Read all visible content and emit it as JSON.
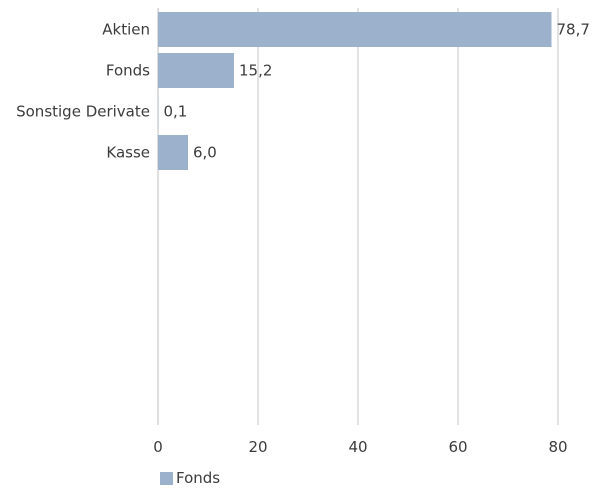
{
  "chart_data": {
    "type": "bar",
    "orientation": "horizontal",
    "categories": [
      "Aktien",
      "Fonds",
      "Sonstige Derivate",
      "Kasse"
    ],
    "series": [
      {
        "name": "Fonds",
        "values": [
          78.7,
          15.2,
          0.1,
          6.0
        ],
        "labels": [
          "78,7",
          "15,2",
          "0,1",
          "6,0"
        ]
      }
    ],
    "xlim": [
      0,
      80
    ],
    "xticks": [
      0,
      20,
      40,
      60,
      80
    ],
    "grid": true,
    "legend_position": "bottom-left",
    "colors": {
      "bar": "#9cb1cc",
      "grid": "#c4c4c4",
      "axis": "#bcbcbc"
    }
  }
}
